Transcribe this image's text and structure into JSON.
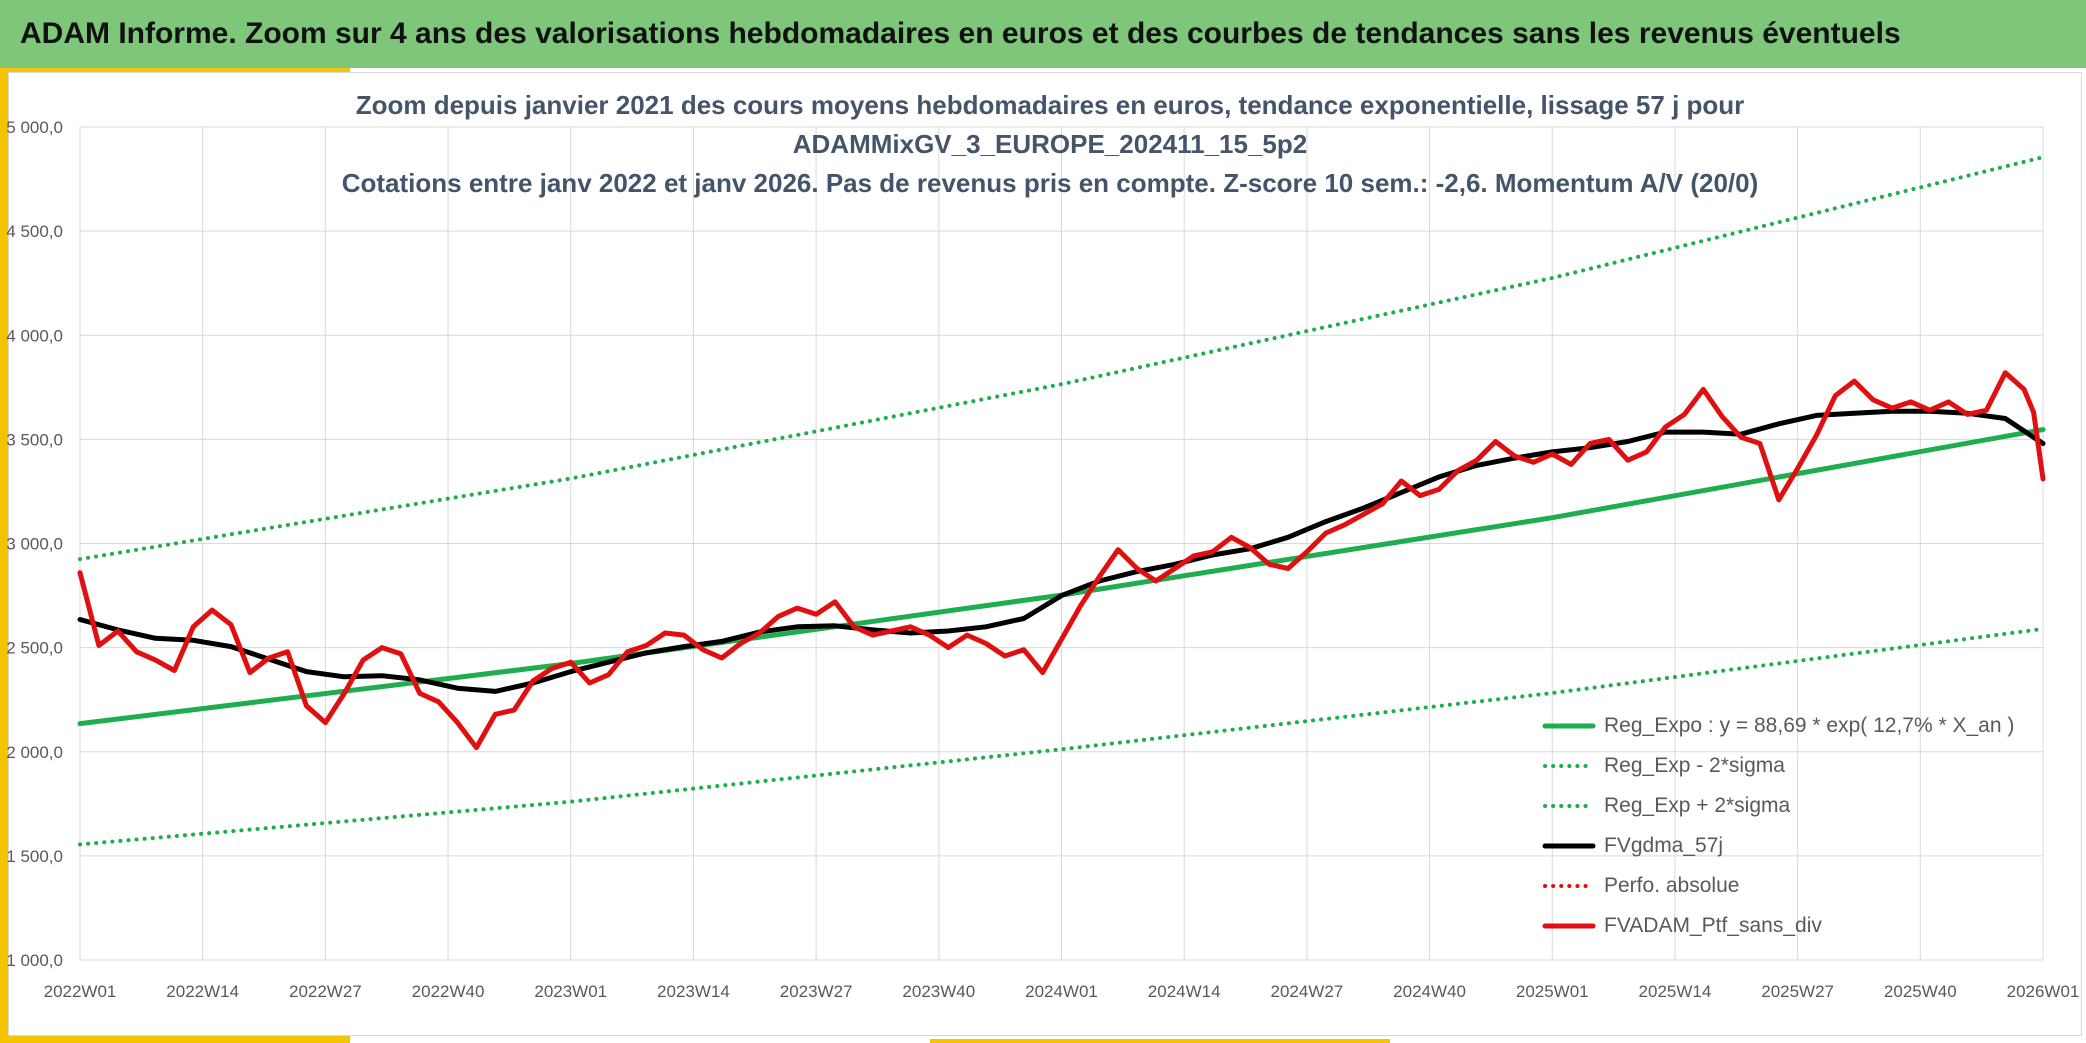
{
  "banner": {
    "title": "ADAM Informe. Zoom sur 4 ans des valorisations hebdomadaires en euros et des courbes de tendances sans les revenus éventuels"
  },
  "chart_data": {
    "type": "line",
    "title_lines": [
      "Zoom depuis janvier 2021 des cours moyens hebdomadaires en euros, tendance exponentielle, lissage 57 j pour",
      "ADAMMixGV_3_EUROPE_202411_15_5p2",
      "Cotations entre janv 2022 et janv 2026. Pas de revenus pris en compte. Z-score 10 sem.: -2,6. Momentum A/V (20/0)"
    ],
    "xlabel": "",
    "ylabel": "",
    "x_ticks": [
      "2022W01",
      "2022W14",
      "2022W27",
      "2022W40",
      "2023W01",
      "2023W14",
      "2023W27",
      "2023W40",
      "2024W01",
      "2024W14",
      "2024W27",
      "2024W40",
      "2025W01",
      "2025W14",
      "2025W27",
      "2025W40",
      "2026W01"
    ],
    "x_range_weeks": [
      0,
      208
    ],
    "ylim": [
      1000,
      5000
    ],
    "y_ticks": [
      {
        "value": 1000,
        "label": "1 000,0"
      },
      {
        "value": 1500,
        "label": "1 500,0"
      },
      {
        "value": 2000,
        "label": "2 000,0"
      },
      {
        "value": 2500,
        "label": "2 500,0"
      },
      {
        "value": 3000,
        "label": "3 000,0"
      },
      {
        "value": 3500,
        "label": "3 500,0"
      },
      {
        "value": 4000,
        "label": "4 000,0"
      },
      {
        "value": 4500,
        "label": "4 500,0"
      },
      {
        "value": 5000,
        "label": "5 000,0"
      }
    ],
    "grid": true,
    "legend_position": "bottom-right",
    "series": [
      {
        "name": "Reg_Expo : y = 88,69 * exp( 12,7% *  X_an )",
        "color": "#1fad4f",
        "style": "solid",
        "x": [
          0,
          52,
          104,
          156,
          208
        ],
        "y": [
          2135,
          2424,
          2752,
          3124,
          3547
        ]
      },
      {
        "name": "Reg_Exp - 2*sigma",
        "color": "#1fad4f",
        "style": "dotted",
        "x": [
          0,
          52,
          104,
          156,
          208
        ],
        "y": [
          1555,
          1760,
          2012,
          2282,
          2590
        ]
      },
      {
        "name": "Reg_Exp + 2*sigma",
        "color": "#1fad4f",
        "style": "dotted",
        "x": [
          0,
          52,
          104,
          156,
          208
        ],
        "y": [
          2925,
          3312,
          3765,
          4275,
          4855
        ]
      },
      {
        "name": "FVgdma_57j",
        "color": "#000000",
        "style": "solid",
        "x": [
          0,
          4,
          8,
          12,
          16,
          20,
          24,
          28,
          32,
          36,
          40,
          44,
          48,
          52,
          56,
          60,
          64,
          68,
          72,
          76,
          80,
          84,
          88,
          92,
          96,
          100,
          104,
          108,
          112,
          116,
          120,
          124,
          128,
          132,
          136,
          140,
          144,
          148,
          152,
          156,
          160,
          164,
          168,
          172,
          176,
          180,
          184,
          188,
          192,
          196,
          200,
          204,
          208
        ],
        "y": [
          2635,
          2585,
          2545,
          2535,
          2505,
          2445,
          2385,
          2360,
          2365,
          2345,
          2305,
          2290,
          2330,
          2385,
          2430,
          2475,
          2505,
          2530,
          2575,
          2600,
          2605,
          2585,
          2570,
          2580,
          2600,
          2640,
          2750,
          2820,
          2865,
          2900,
          2945,
          2975,
          3030,
          3105,
          3170,
          3245,
          3320,
          3375,
          3410,
          3440,
          3460,
          3490,
          3535,
          3535,
          3525,
          3575,
          3615,
          3625,
          3635,
          3635,
          3625,
          3600,
          3480
        ]
      },
      {
        "name": "Perfo. absolue",
        "color": "#e01010",
        "style": "dotted",
        "x": [],
        "y": []
      },
      {
        "name": "FVADAM_Ptf_sans_div",
        "color": "#e01010",
        "style": "solid",
        "x": [
          0,
          2,
          4,
          6,
          8,
          10,
          12,
          14,
          16,
          18,
          20,
          22,
          24,
          26,
          28,
          30,
          32,
          34,
          36,
          38,
          40,
          42,
          44,
          46,
          48,
          50,
          52,
          54,
          56,
          58,
          60,
          62,
          64,
          66,
          68,
          70,
          72,
          74,
          76,
          78,
          80,
          82,
          84,
          86,
          88,
          90,
          92,
          94,
          96,
          98,
          100,
          102,
          104,
          106,
          108,
          110,
          112,
          114,
          116,
          118,
          120,
          122,
          124,
          126,
          128,
          130,
          132,
          134,
          136,
          138,
          140,
          142,
          144,
          146,
          148,
          150,
          152,
          154,
          156,
          158,
          160,
          162,
          164,
          166,
          168,
          170,
          172,
          174,
          176,
          178,
          180,
          182,
          184,
          186,
          188,
          190,
          192,
          194,
          196,
          198,
          200,
          202,
          204,
          206,
          207,
          208
        ],
        "y": [
          2860,
          2510,
          2580,
          2480,
          2440,
          2390,
          2600,
          2680,
          2610,
          2380,
          2450,
          2480,
          2220,
          2140,
          2280,
          2440,
          2500,
          2470,
          2280,
          2240,
          2140,
          2020,
          2180,
          2200,
          2340,
          2400,
          2430,
          2330,
          2370,
          2480,
          2510,
          2570,
          2560,
          2490,
          2450,
          2520,
          2570,
          2650,
          2690,
          2660,
          2720,
          2600,
          2560,
          2580,
          2600,
          2560,
          2500,
          2560,
          2520,
          2460,
          2490,
          2380,
          2540,
          2700,
          2840,
          2970,
          2880,
          2820,
          2880,
          2940,
          2960,
          3030,
          2980,
          2900,
          2880,
          2960,
          3050,
          3090,
          3140,
          3190,
          3300,
          3230,
          3260,
          3350,
          3400,
          3490,
          3420,
          3390,
          3430,
          3380,
          3480,
          3500,
          3400,
          3440,
          3560,
          3620,
          3740,
          3610,
          3510,
          3480,
          3210,
          3360,
          3520,
          3710,
          3780,
          3690,
          3650,
          3680,
          3640,
          3680,
          3620,
          3640,
          3820,
          3740,
          3630,
          3310
        ]
      }
    ]
  }
}
